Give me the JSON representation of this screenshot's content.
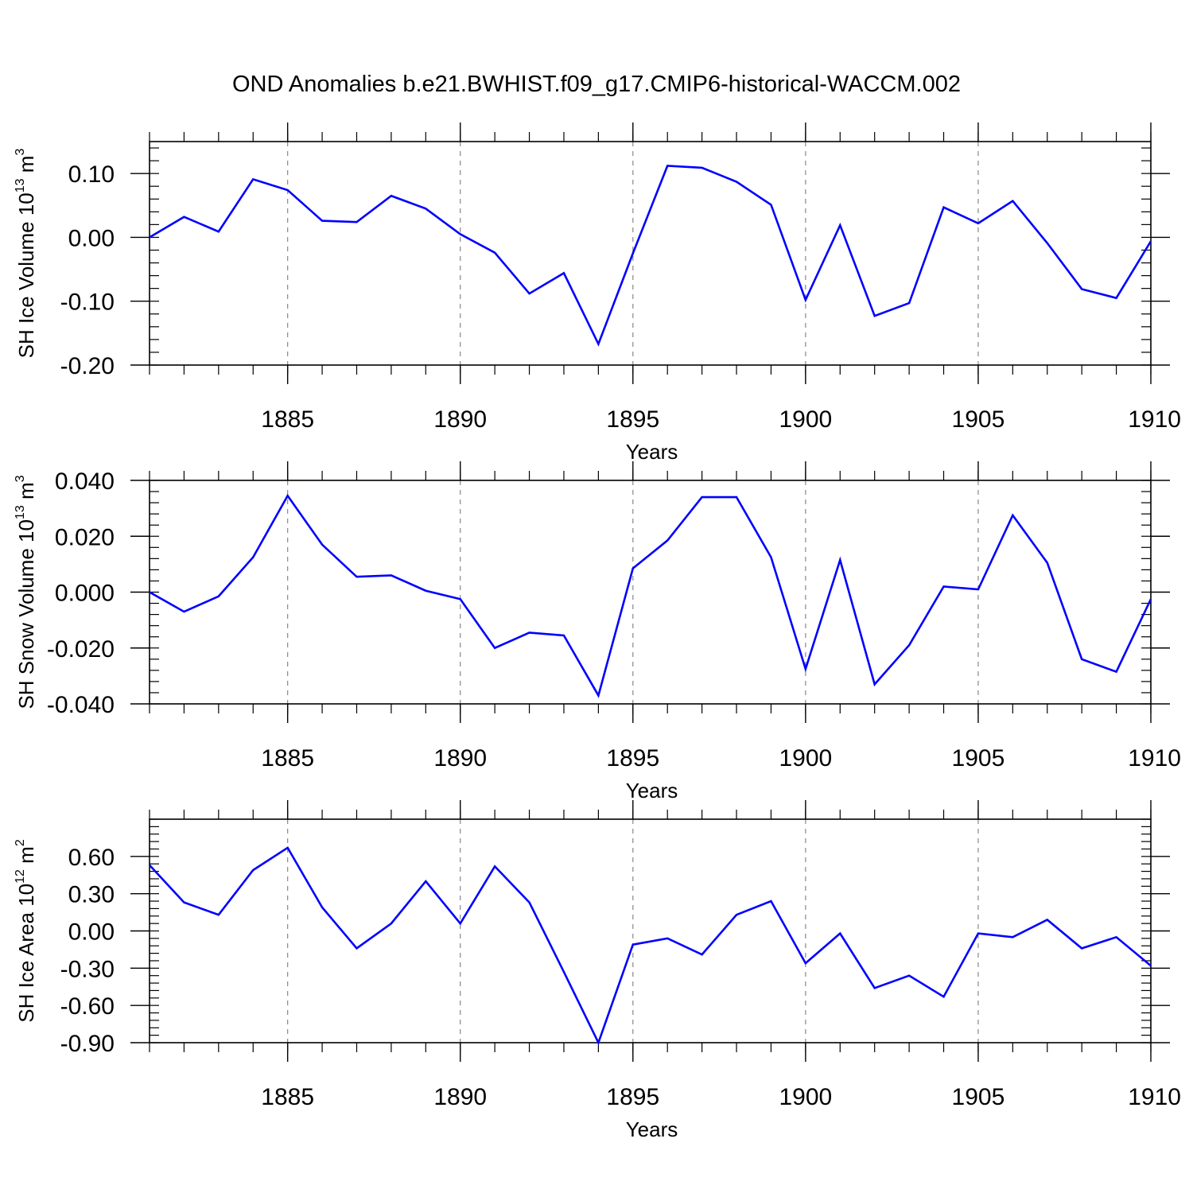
{
  "figure": {
    "title": "OND Anomalies b.e21.BWHIST.f09_g17.CMIP6-historical-WACCM.002",
    "line_color": "#0000ff",
    "grid_color": "#888888"
  },
  "chart_data": [
    {
      "type": "line",
      "ylabel": {
        "main": "SH Ice Volume 10",
        "exp": "13",
        "unit": " m",
        "unit_exp": "3"
      },
      "xlabel": "Years",
      "xlim": [
        1881,
        1910
      ],
      "ylim": [
        -0.2,
        0.15
      ],
      "yticks": [
        -0.2,
        -0.1,
        0.0,
        0.1
      ],
      "ytick_labels": [
        "-0.20",
        "-0.10",
        "0.00",
        "0.10"
      ],
      "xticks": [
        1885,
        1890,
        1895,
        1900,
        1905,
        1910
      ],
      "xtick_labels": [
        "1885",
        "1890",
        "1895",
        "1900",
        "1905",
        "1910"
      ],
      "grid_x": [
        1885,
        1890,
        1895,
        1900,
        1905
      ],
      "x": [
        1881,
        1882,
        1883,
        1884,
        1885,
        1886,
        1887,
        1888,
        1889,
        1890,
        1891,
        1892,
        1893,
        1894,
        1895,
        1896,
        1897,
        1898,
        1899,
        1900,
        1901,
        1902,
        1903,
        1904,
        1905,
        1906,
        1907,
        1908,
        1909,
        1910
      ],
      "series": [
        {
          "values": [
            0.0,
            0.032,
            0.009,
            0.091,
            0.074,
            0.026,
            0.024,
            0.065,
            0.045,
            0.005,
            -0.024,
            -0.088,
            -0.056,
            -0.167,
            -0.025,
            0.112,
            0.109,
            0.087,
            0.051,
            -0.098,
            0.019,
            -0.123,
            -0.103,
            0.047,
            0.022,
            0.057,
            -0.009,
            -0.081,
            -0.095,
            -0.006
          ]
        }
      ]
    },
    {
      "type": "line",
      "ylabel": {
        "main": "SH Snow Volume 10",
        "exp": "13",
        "unit": " m",
        "unit_exp": "3"
      },
      "xlabel": "Years",
      "xlim": [
        1881,
        1910
      ],
      "ylim": [
        -0.04,
        0.04
      ],
      "yticks": [
        -0.04,
        -0.02,
        0.0,
        0.02,
        0.04
      ],
      "ytick_labels": [
        "-0.040",
        "-0.020",
        "0.000",
        "0.020",
        "0.040"
      ],
      "xticks": [
        1885,
        1890,
        1895,
        1900,
        1905,
        1910
      ],
      "xtick_labels": [
        "1885",
        "1890",
        "1895",
        "1900",
        "1905",
        "1910"
      ],
      "grid_x": [
        1885,
        1890,
        1895,
        1900,
        1905
      ],
      "x": [
        1881,
        1882,
        1883,
        1884,
        1885,
        1886,
        1887,
        1888,
        1889,
        1890,
        1891,
        1892,
        1893,
        1894,
        1895,
        1896,
        1897,
        1898,
        1899,
        1900,
        1901,
        1902,
        1903,
        1904,
        1905,
        1906,
        1907,
        1908,
        1909,
        1910
      ],
      "series": [
        {
          "values": [
            0.0,
            -0.007,
            -0.0015,
            0.0125,
            0.0345,
            0.017,
            0.0055,
            0.006,
            0.0005,
            -0.0025,
            -0.02,
            -0.0145,
            -0.0155,
            -0.037,
            0.0085,
            0.0185,
            0.034,
            0.034,
            0.0125,
            -0.0275,
            0.0115,
            -0.033,
            -0.019,
            0.002,
            0.001,
            0.0275,
            0.0105,
            -0.024,
            -0.0285,
            -0.0025
          ]
        }
      ]
    },
    {
      "type": "line",
      "ylabel": {
        "main": "SH Ice Area 10",
        "exp": "12",
        "unit": " m",
        "unit_exp": "2"
      },
      "xlabel": "Years",
      "xlim": [
        1881,
        1910
      ],
      "ylim": [
        -0.9,
        0.9
      ],
      "yticks": [
        -0.9,
        -0.6,
        -0.3,
        0.0,
        0.3,
        0.6
      ],
      "ytick_labels": [
        "-0.90",
        "-0.60",
        "-0.30",
        "0.00",
        "0.30",
        "0.60"
      ],
      "xticks": [
        1885,
        1890,
        1895,
        1900,
        1905,
        1910
      ],
      "xtick_labels": [
        "1885",
        "1890",
        "1895",
        "1900",
        "1905",
        "1910"
      ],
      "grid_x": [
        1885,
        1890,
        1895,
        1900,
        1905
      ],
      "x": [
        1881,
        1882,
        1883,
        1884,
        1885,
        1886,
        1887,
        1888,
        1889,
        1890,
        1891,
        1892,
        1893,
        1894,
        1895,
        1896,
        1897,
        1898,
        1899,
        1900,
        1901,
        1902,
        1903,
        1904,
        1905,
        1906,
        1907,
        1908,
        1909,
        1910
      ],
      "series": [
        {
          "values": [
            0.53,
            0.23,
            0.13,
            0.49,
            0.67,
            0.19,
            -0.14,
            0.06,
            0.4,
            0.06,
            0.52,
            0.23,
            -0.33,
            -0.9,
            -0.11,
            -0.06,
            -0.19,
            0.13,
            0.24,
            -0.26,
            -0.02,
            -0.46,
            -0.36,
            -0.53,
            -0.02,
            -0.05,
            0.09,
            -0.14,
            -0.05,
            -0.28
          ]
        }
      ]
    }
  ]
}
